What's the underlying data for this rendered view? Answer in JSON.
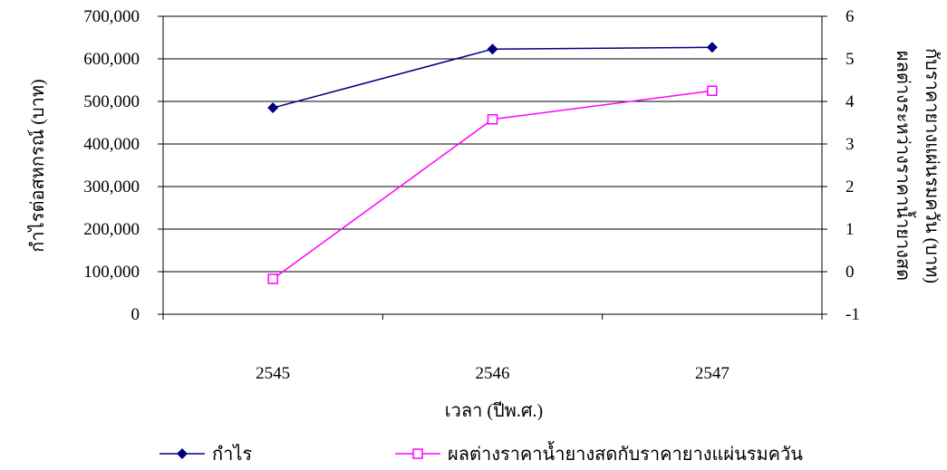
{
  "chart_data": {
    "type": "line",
    "title": "",
    "xlabel": "เวลา (ปีพ.ศ.)",
    "ylabel_left": "กำไรต่อสหกรณ์ (บาท)",
    "ylabel_right_line1": "ผลต่างระหว่างราคาน้ำยางสด",
    "ylabel_right_line2": "กับราคายางแผ่นรมควัน (บาท)",
    "categories": [
      "2545",
      "2546",
      "2547"
    ],
    "y_left": {
      "lim": [
        0,
        700000
      ],
      "ticks": [
        "0",
        "100,000",
        "200,000",
        "300,000",
        "400,000",
        "500,000",
        "600,000",
        "700,000"
      ],
      "tick_values": [
        0,
        100000,
        200000,
        300000,
        400000,
        500000,
        600000,
        700000
      ]
    },
    "y_right": {
      "lim": [
        -1,
        6
      ],
      "ticks": [
        "-1",
        "0",
        "1",
        "2",
        "3",
        "4",
        "5",
        "6"
      ],
      "tick_values": [
        -1,
        0,
        1,
        2,
        3,
        4,
        5,
        6
      ]
    },
    "series": [
      {
        "name": "กำไร",
        "axis": "left",
        "values": [
          485000,
          623000,
          627000
        ],
        "color": "#000080",
        "marker": "diamond"
      },
      {
        "name": "ผลต่างราคาน้ำยางสดกับราคายางแผ่นรมควัน",
        "axis": "right",
        "values": [
          -0.17,
          3.58,
          4.25
        ],
        "color": "#ff00ff",
        "marker": "square-open"
      }
    ],
    "grid": true,
    "legend_position": "bottom"
  }
}
